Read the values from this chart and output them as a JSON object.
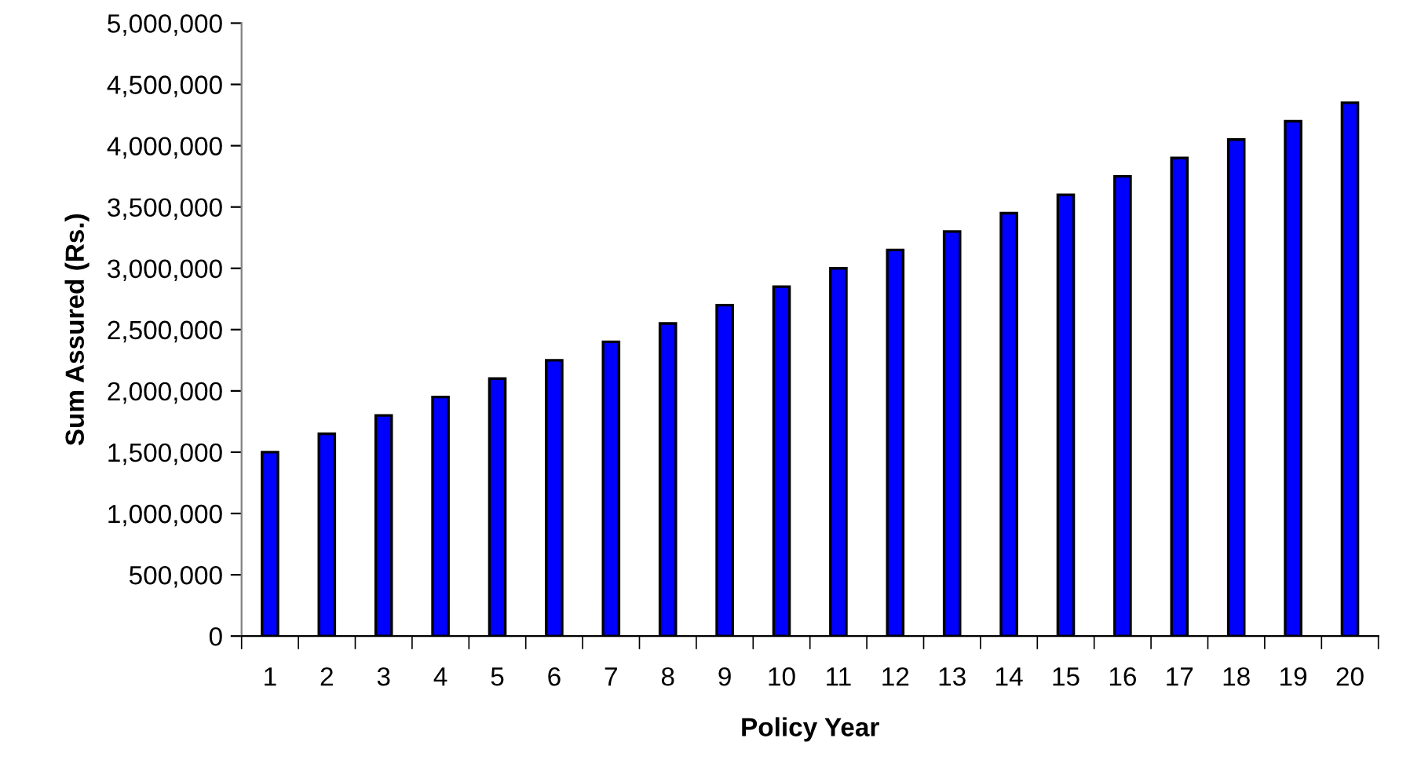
{
  "chart_data": {
    "type": "bar",
    "xlabel": "Policy Year",
    "ylabel": "Sum Assured (Rs.)",
    "categories": [
      "1",
      "2",
      "3",
      "4",
      "5",
      "6",
      "7",
      "8",
      "9",
      "10",
      "11",
      "12",
      "13",
      "14",
      "15",
      "16",
      "17",
      "18",
      "19",
      "20"
    ],
    "values": [
      1500000,
      1650000,
      1800000,
      1950000,
      2100000,
      2250000,
      2400000,
      2550000,
      2700000,
      2850000,
      3000000,
      3150000,
      3300000,
      3450000,
      3600000,
      3750000,
      3900000,
      4050000,
      4200000,
      4350000
    ],
    "color": "#0000ff",
    "ylim": [
      0,
      5000000
    ],
    "yticks": [
      {
        "value": 0,
        "label": "0"
      },
      {
        "value": 500000,
        "label": "500,000"
      },
      {
        "value": 1000000,
        "label": "1,000,000"
      },
      {
        "value": 1500000,
        "label": "1,500,000"
      },
      {
        "value": 2000000,
        "label": "2,000,000"
      },
      {
        "value": 2500000,
        "label": "2,500,000"
      },
      {
        "value": 3000000,
        "label": "3,000,000"
      },
      {
        "value": 3500000,
        "label": "3,500,000"
      },
      {
        "value": 4000000,
        "label": "4,000,000"
      },
      {
        "value": 4500000,
        "label": "4,500,000"
      },
      {
        "value": 5000000,
        "label": "5,000,000"
      }
    ],
    "grid": false,
    "legend": false
  }
}
